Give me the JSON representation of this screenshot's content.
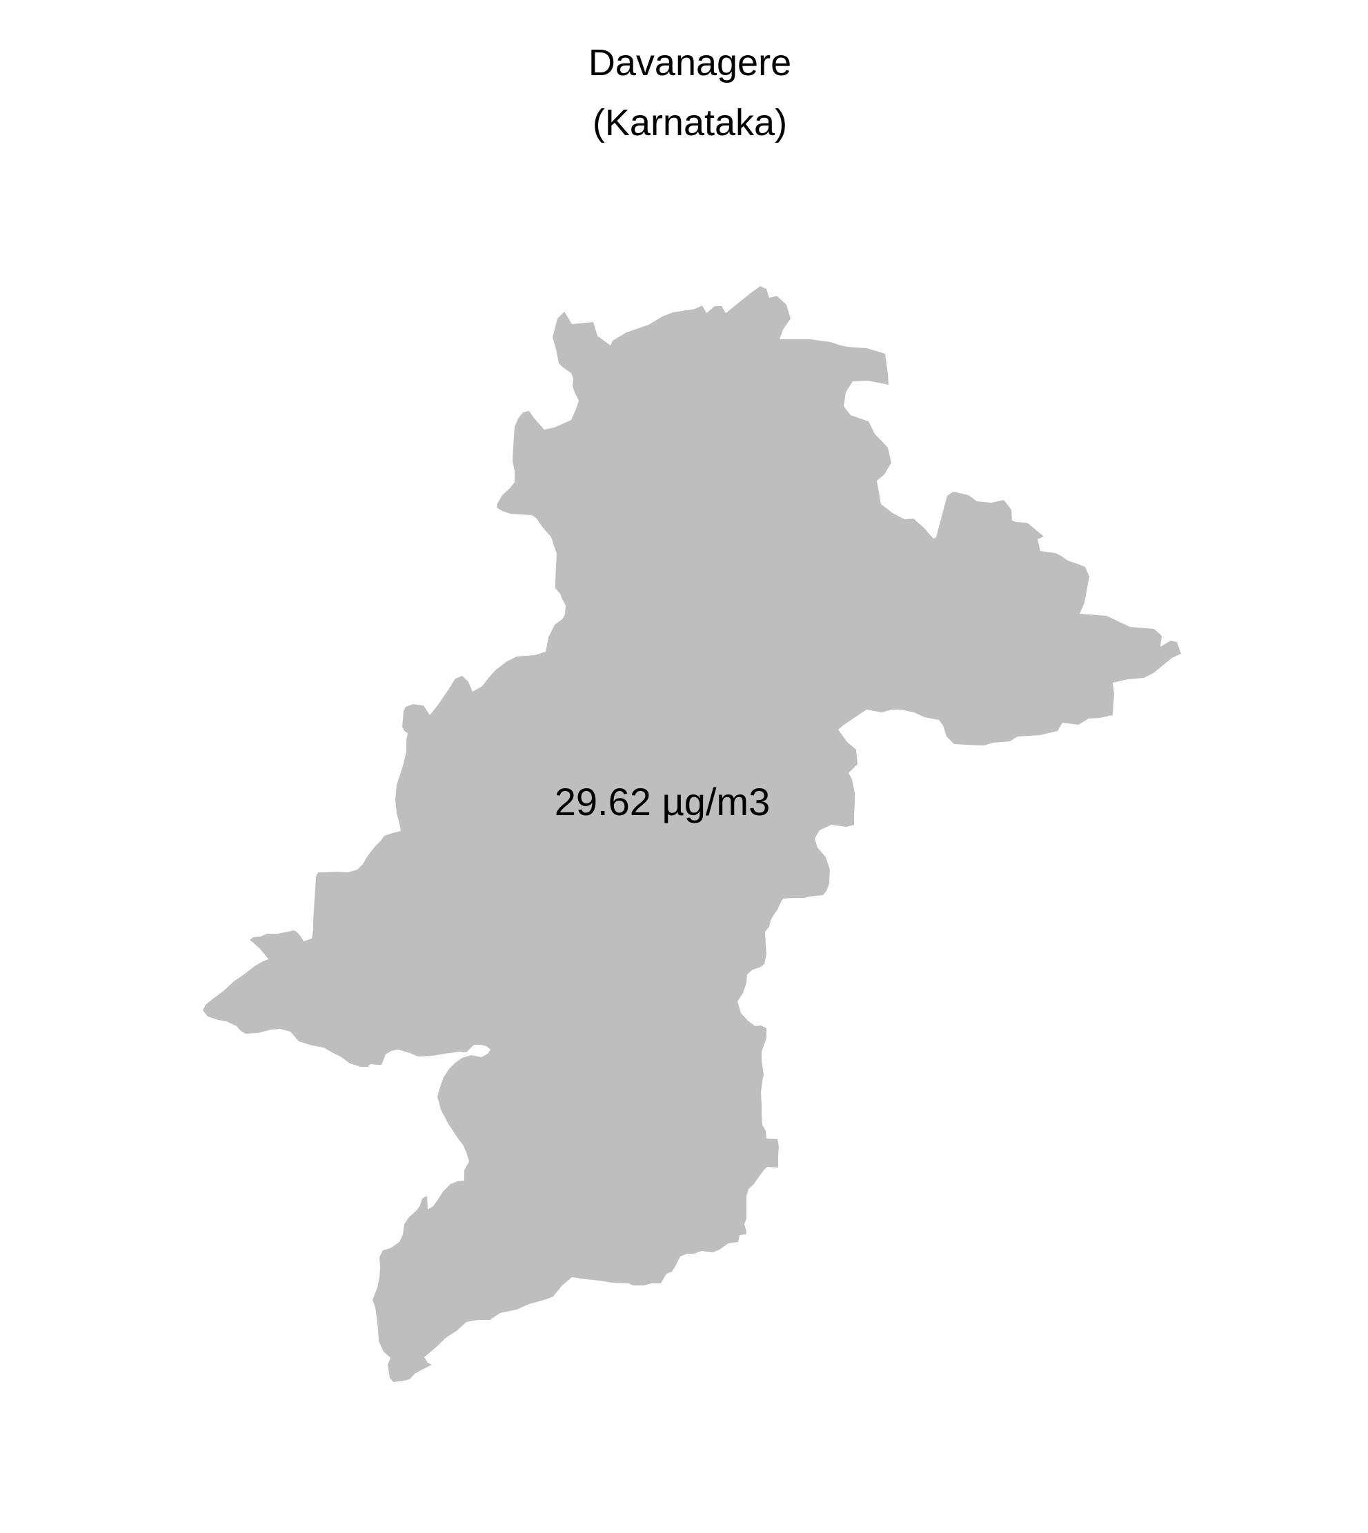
{
  "map": {
    "title": "Davanagere",
    "subtitle": "(Karnataka)",
    "value_label": "29.62 µg/m3",
    "region_fill": "#bebebe",
    "background": "#ffffff"
  }
}
